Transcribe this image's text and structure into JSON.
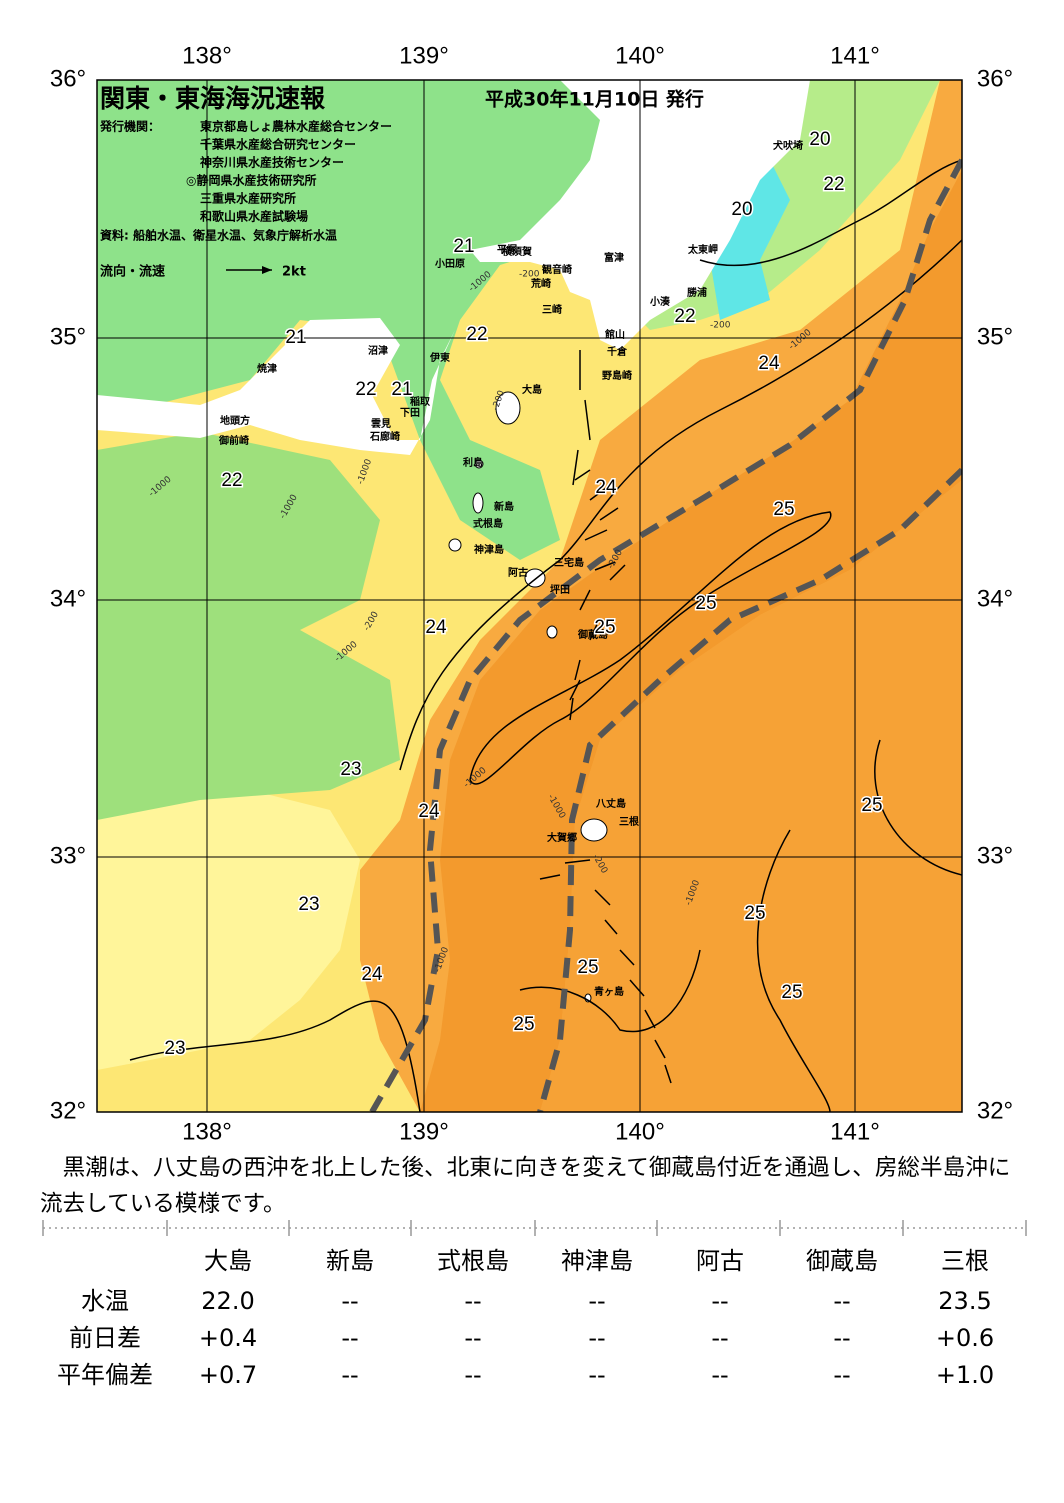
{
  "map": {
    "title": "関東・東海海況速報",
    "issued": "平成30年11月10日 発行",
    "issuer_label": "発行機関：",
    "issuers": [
      "東京都島しょ農林水産総合センター",
      "千葉県水産総合研究センター",
      "神奈川県水産技術センター",
      "◎静岡県水産技術研究所",
      "三重県水産研究所",
      "和歌山県水産試験場"
    ],
    "sources": "資料: 船舶水温、衛星水温、気象庁解析水温",
    "legend": {
      "label": "流向・流速",
      "scale": "2kt"
    },
    "longitude_labels": [
      "138°",
      "139°",
      "140°",
      "141°"
    ],
    "latitude_labels": [
      "36°",
      "35°",
      "34°",
      "33°",
      "32°"
    ],
    "place_names": [
      "犬吠埼",
      "太東岬",
      "勝浦",
      "小湊",
      "富津",
      "館山",
      "千倉",
      "野島崎",
      "横須賀",
      "観音崎",
      "荒崎",
      "三崎",
      "平塚",
      "小田原",
      "沼津",
      "伊東",
      "焼津",
      "稲取",
      "下田",
      "雲見",
      "石廊崎",
      "地頭方",
      "御前崎",
      "大島",
      "利島",
      "新島",
      "式根島",
      "神津島",
      "阿古",
      "三宅島",
      "坪田",
      "御蔵島",
      "八丈島",
      "三根",
      "大賀郷",
      "青ヶ島"
    ],
    "temperature_labels": [
      "20",
      "22",
      "20",
      "21",
      "22",
      "21",
      "22",
      "24",
      "22",
      "21",
      "22",
      "24",
      "25",
      "25",
      "24",
      "25",
      "23",
      "24",
      "25",
      "23",
      "25",
      "24",
      "25",
      "25",
      "25",
      "23"
    ],
    "depth_labels": [
      "-200",
      "-1000",
      "-200",
      "-200",
      "-1000",
      "-1000",
      "-1000",
      "-200",
      "-1000",
      "-1000",
      "-1000",
      "-200",
      "-1000",
      "-1000",
      "-1000",
      "-200"
    ]
  },
  "description": "　黒潮は、八丈島の西沖を北上した後、北東に向きを変えて御蔵島付近を通過し、房総半島沖に流去している模様です。",
  "table": {
    "columns": [
      "大島",
      "新島",
      "式根島",
      "神津島",
      "阿古",
      "御蔵島",
      "三根"
    ],
    "rows": [
      {
        "label": "水温",
        "values": [
          "22.0",
          "--",
          "--",
          "--",
          "--",
          "--",
          "23.5"
        ]
      },
      {
        "label": "前日差",
        "values": [
          "+0.4",
          "--",
          "--",
          "--",
          "--",
          "--",
          "+0.6"
        ]
      },
      {
        "label": "平年偏差",
        "values": [
          "+0.7",
          "--",
          "--",
          "--",
          "--",
          "--",
          "+1.0"
        ]
      }
    ]
  }
}
